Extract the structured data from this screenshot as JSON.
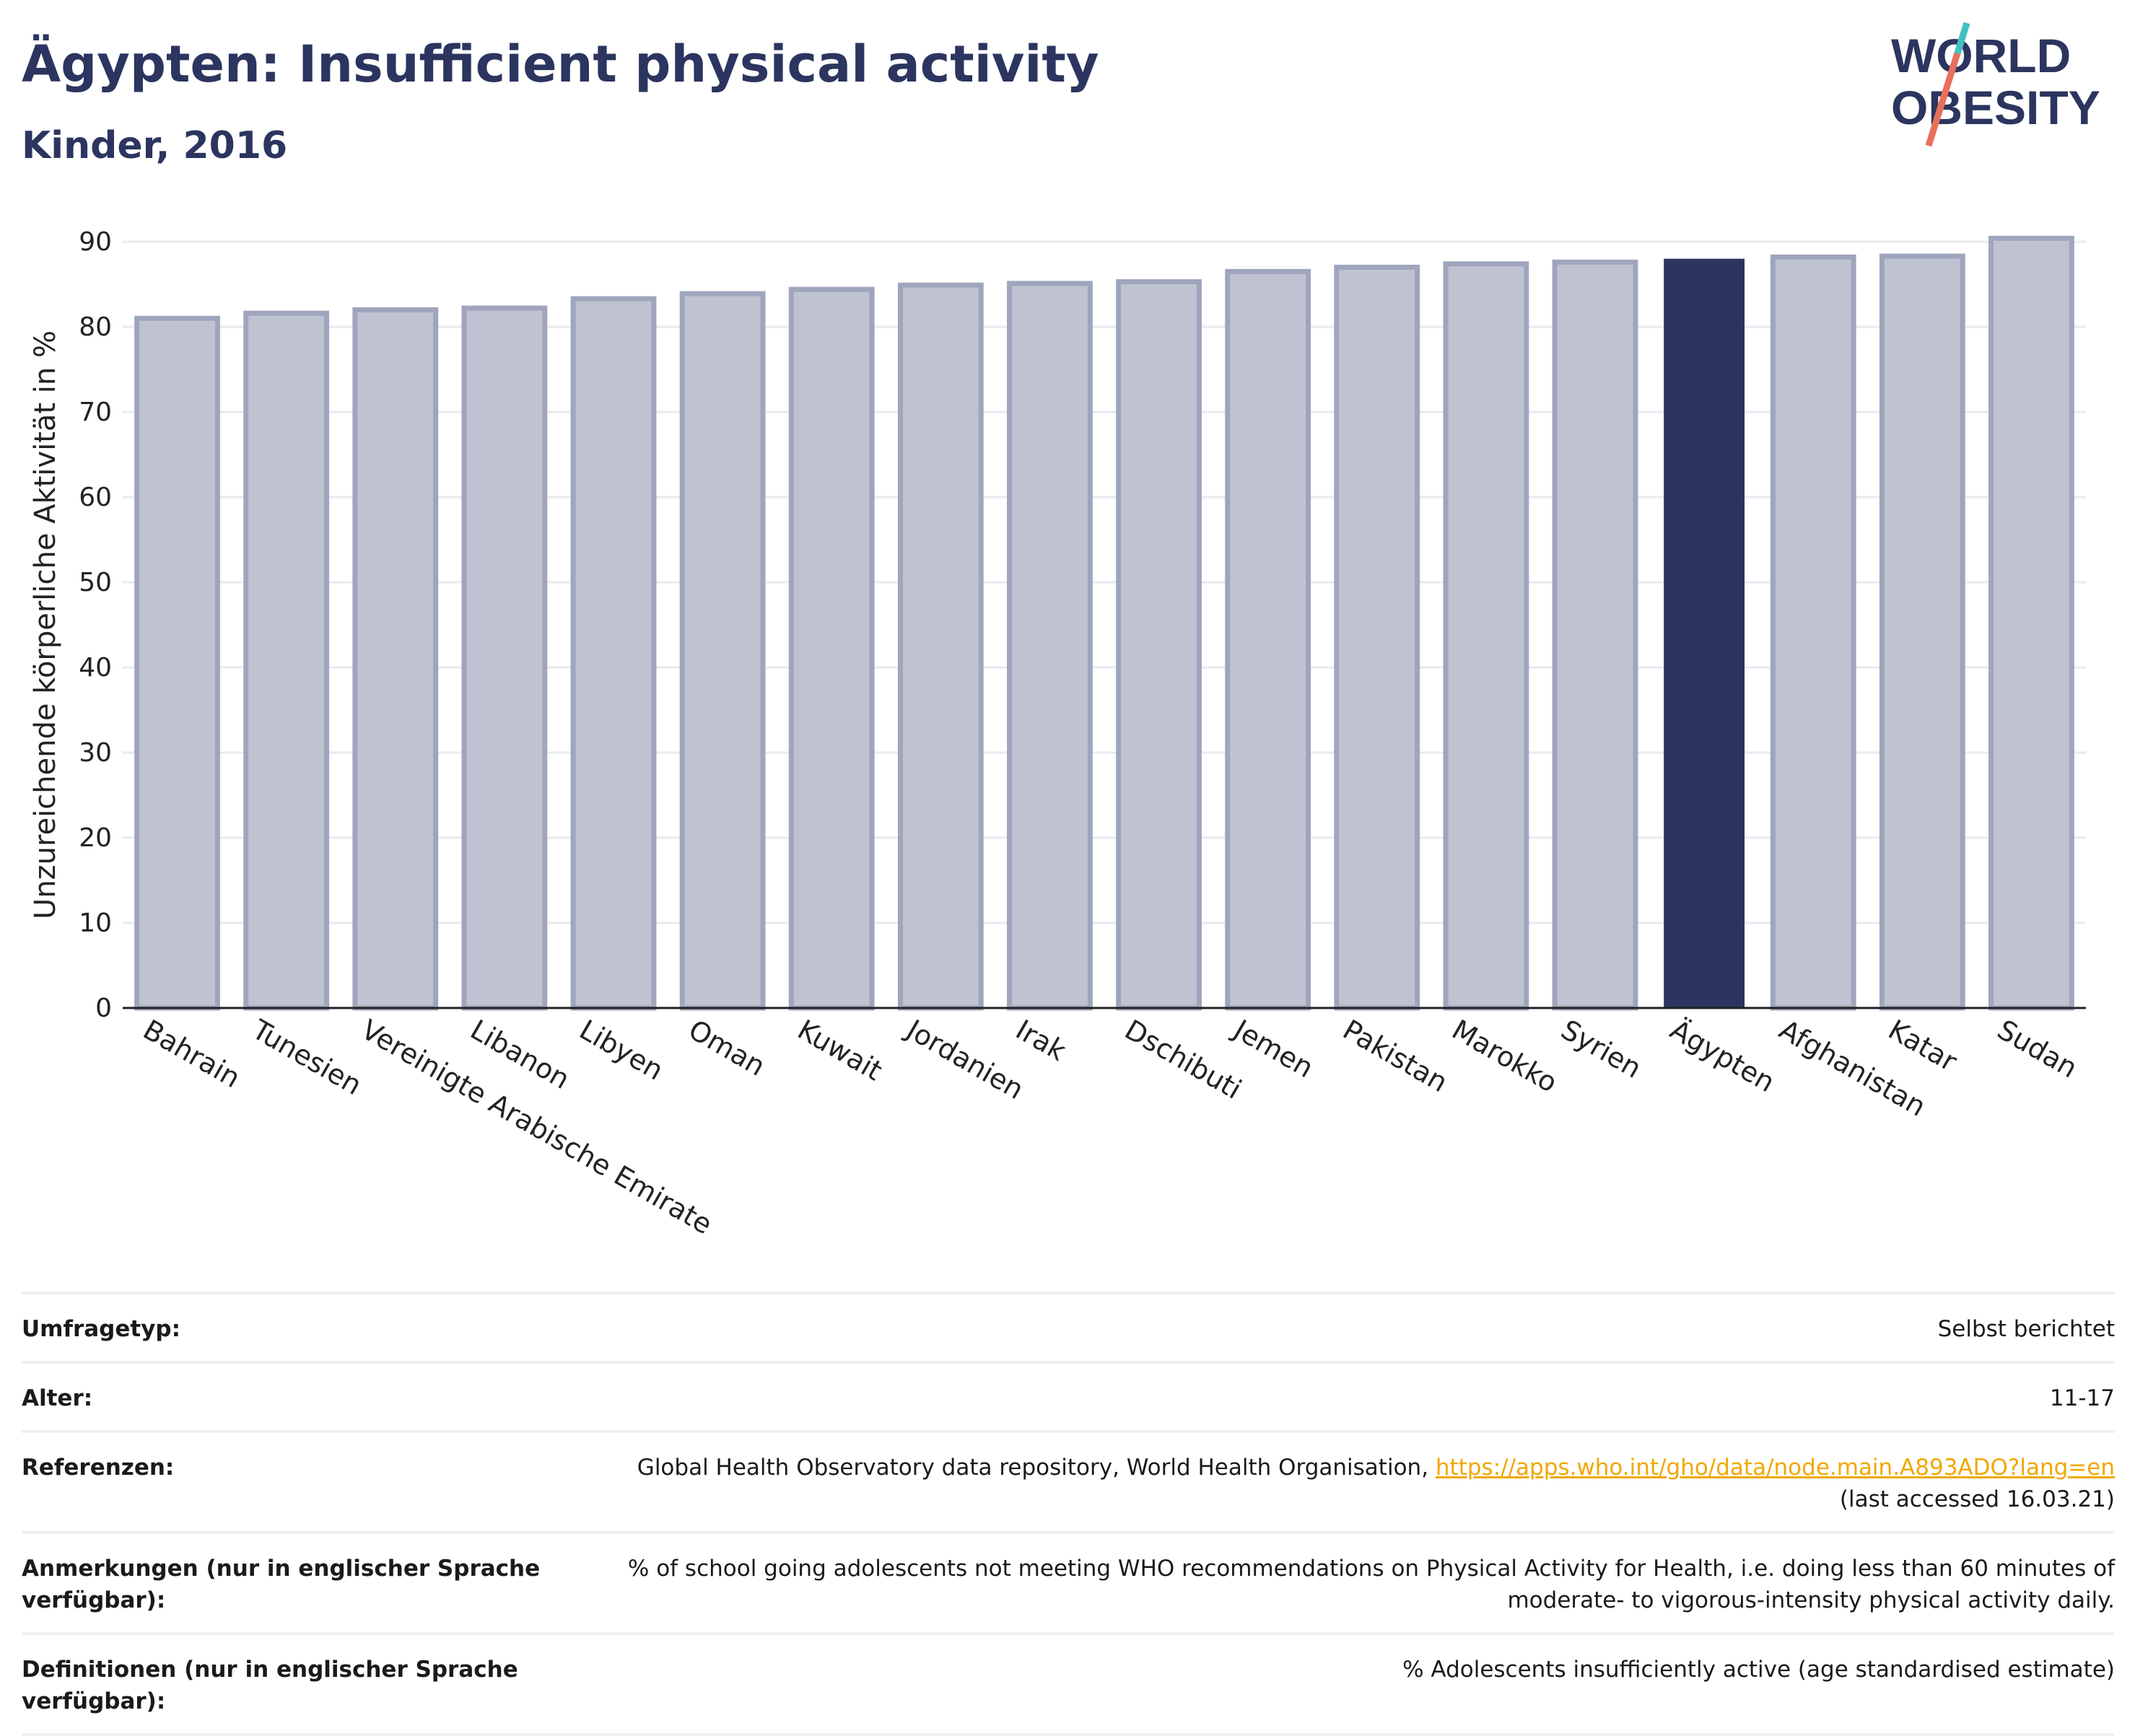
{
  "header": {
    "title": "Ägypten: Insufficient physical activity",
    "subtitle": "Kinder, 2016"
  },
  "logo": {
    "line1": "WORLD",
    "line2": "OBESITY"
  },
  "colors": {
    "bar": "#bfc3d1",
    "bar_stroke": "#9fa5bc",
    "highlight": "#2b355f",
    "grid": "#e8eaf0",
    "accent_teal": "#3ec2c4",
    "accent_red": "#e8705a"
  },
  "chart_data": {
    "type": "bar",
    "categories": [
      "Bahrain",
      "Tunesien",
      "Vereinigte Arabische Emirate",
      "Libanon",
      "Libyen",
      "Oman",
      "Kuwait",
      "Jordanien",
      "Irak",
      "Dschibuti",
      "Jemen",
      "Pakistan",
      "Marokko",
      "Syrien",
      "Ägypten",
      "Afghanistan",
      "Katar",
      "Sudan"
    ],
    "values": [
      81.0,
      81.6,
      82.0,
      82.2,
      83.3,
      83.9,
      84.4,
      84.9,
      85.1,
      85.3,
      86.5,
      87.0,
      87.4,
      87.6,
      88.0,
      88.2,
      88.3,
      90.4
    ],
    "highlight": "Ägypten",
    "ylabel": "Unzureichende körperliche Aktivität in %",
    "ylim": [
      0,
      90
    ],
    "yticks": [
      0,
      10,
      20,
      30,
      40,
      50,
      60,
      70,
      80,
      90
    ],
    "grid": true
  },
  "meta": [
    {
      "label": "Umfragetyp:",
      "value": "Selbst berichtet"
    },
    {
      "label": "Alter:",
      "value": "11-17"
    },
    {
      "label": "Referenzen:",
      "value": "Global Health Observatory data repository, World Health Organisation,",
      "link": "https://apps.who.int/gho/data/node.main.A893ADO?lang=en",
      "value2": "(last accessed 16.03.21)"
    },
    {
      "label": "Anmerkungen (nur in englischer Sprache verfügbar):",
      "value": "% of school going adolescents not meeting WHO recommendations on Physical Activity for Health, i.e. doing less than 60 minutes of moderate- to vigorous-intensity physical activity daily."
    },
    {
      "label": "Definitionen (nur in englischer Sprache verfügbar):",
      "value": "% Adolescents insufficiently active (age standardised estimate)"
    }
  ]
}
